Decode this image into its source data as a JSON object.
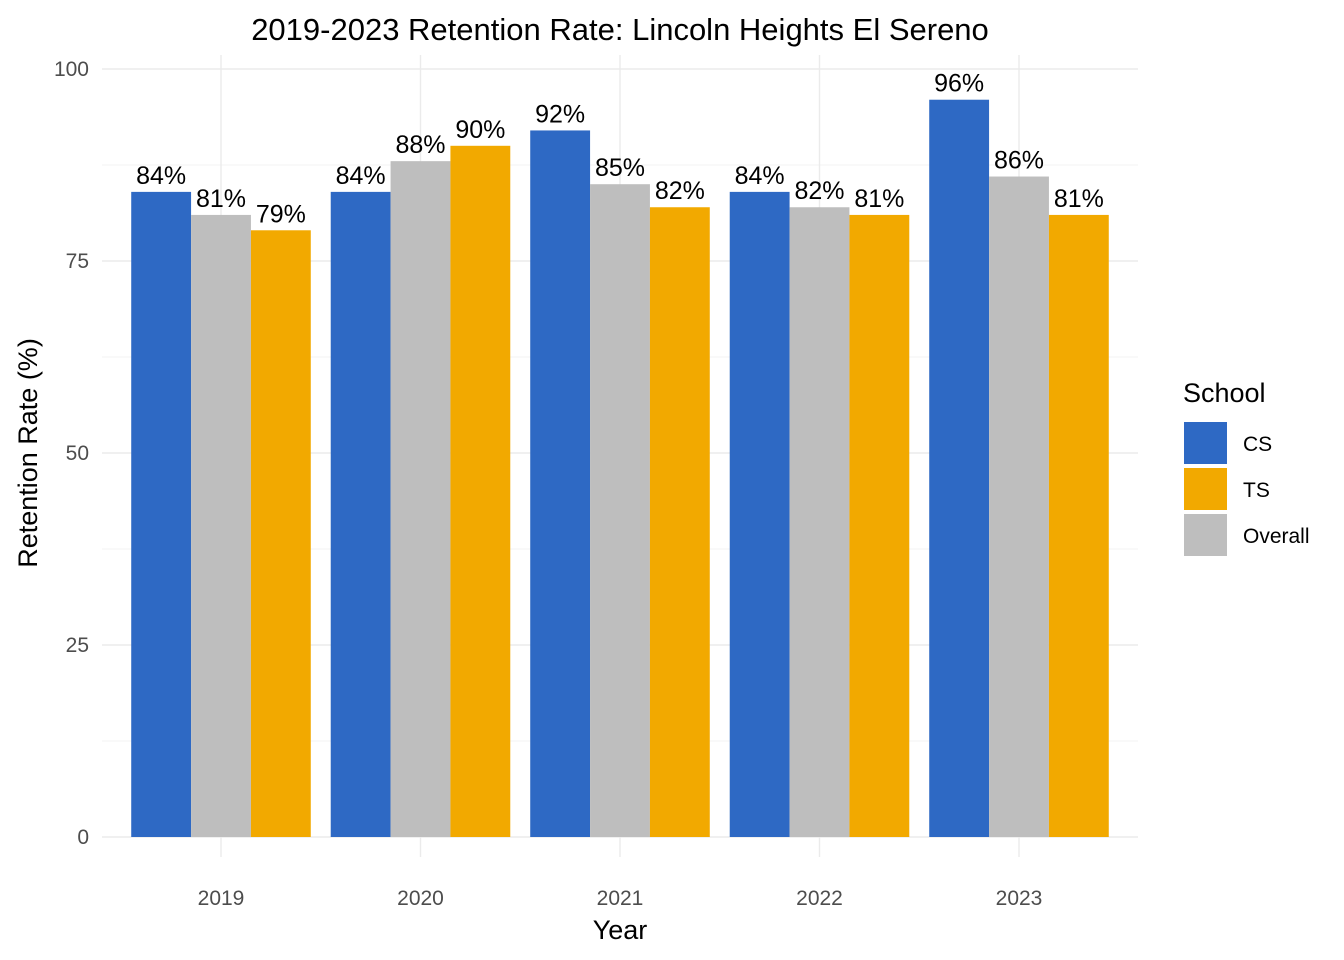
{
  "chart_data": {
    "type": "bar",
    "title": "2019-2023 Retention Rate: Lincoln Heights El Sereno",
    "xlabel": "Year",
    "ylabel": "Retention Rate (%)",
    "categories": [
      "2019",
      "2020",
      "2021",
      "2022",
      "2023"
    ],
    "ylim": [
      0,
      100
    ],
    "yticks": [
      "0",
      "25",
      "50",
      "75",
      "100"
    ],
    "grid": true,
    "legend": {
      "title": "School",
      "position": "right",
      "entries": [
        "CS",
        "TS",
        "Overall"
      ]
    },
    "series": [
      {
        "name": "CS",
        "color": "#2E69C4",
        "values": [
          84,
          84,
          92,
          84,
          96
        ],
        "labels": [
          "84%",
          "84%",
          "92%",
          "84%",
          "96%"
        ]
      },
      {
        "name": "Overall",
        "color": "#BEBEBE",
        "values": [
          81,
          88,
          85,
          82,
          86
        ],
        "labels": [
          "81%",
          "88%",
          "85%",
          "82%",
          "86%"
        ]
      },
      {
        "name": "TS",
        "color": "#F2A900",
        "values": [
          79,
          90,
          82,
          81,
          81
        ],
        "labels": [
          "79%",
          "90%",
          "82%",
          "81%",
          "81%"
        ]
      }
    ]
  }
}
